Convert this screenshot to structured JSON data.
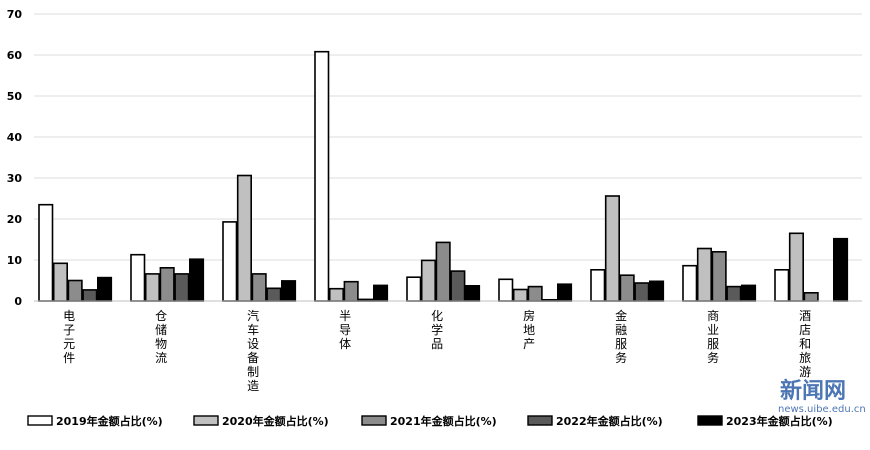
{
  "chart_data": {
    "type": "bar",
    "ylim": [
      0,
      70
    ],
    "yticks": [
      0,
      10,
      20,
      30,
      40,
      50,
      60,
      70
    ],
    "grid": true,
    "legend": "bottom",
    "categories": [
      "电子元件",
      "仓储物流",
      "汽车设备制造",
      "半导体",
      "化学品",
      "房地产",
      "金融服务",
      "商业服务",
      "酒店和旅游"
    ],
    "series": [
      {
        "name": "2019年金额占比(%)",
        "color": "#ffffff",
        "values": [
          23.5,
          11.3,
          19.3,
          60.8,
          5.8,
          5.3,
          7.6,
          8.6,
          7.6
        ]
      },
      {
        "name": "2020年金额占比(%)",
        "color": "#c0c0c0",
        "values": [
          9.2,
          6.6,
          30.6,
          3.0,
          9.9,
          2.8,
          25.6,
          12.8,
          16.5
        ]
      },
      {
        "name": "2021年金额占比(%)",
        "color": "#8c8c8c",
        "values": [
          5.0,
          8.1,
          6.6,
          4.7,
          14.3,
          3.5,
          6.3,
          12.0,
          2.0
        ]
      },
      {
        "name": "2022年金额占比(%)",
        "color": "#5a5a5a",
        "values": [
          2.7,
          6.6,
          3.1,
          0.4,
          7.3,
          0.3,
          4.4,
          3.5,
          0.0
        ]
      },
      {
        "name": "2023年金额占比(%)",
        "color": "#000000",
        "values": [
          5.7,
          10.2,
          4.9,
          3.8,
          3.7,
          4.1,
          4.8,
          3.8,
          15.2
        ]
      }
    ]
  },
  "watermark": {
    "logo": "新闻网",
    "url": "news.uibe.edu.cn"
  }
}
